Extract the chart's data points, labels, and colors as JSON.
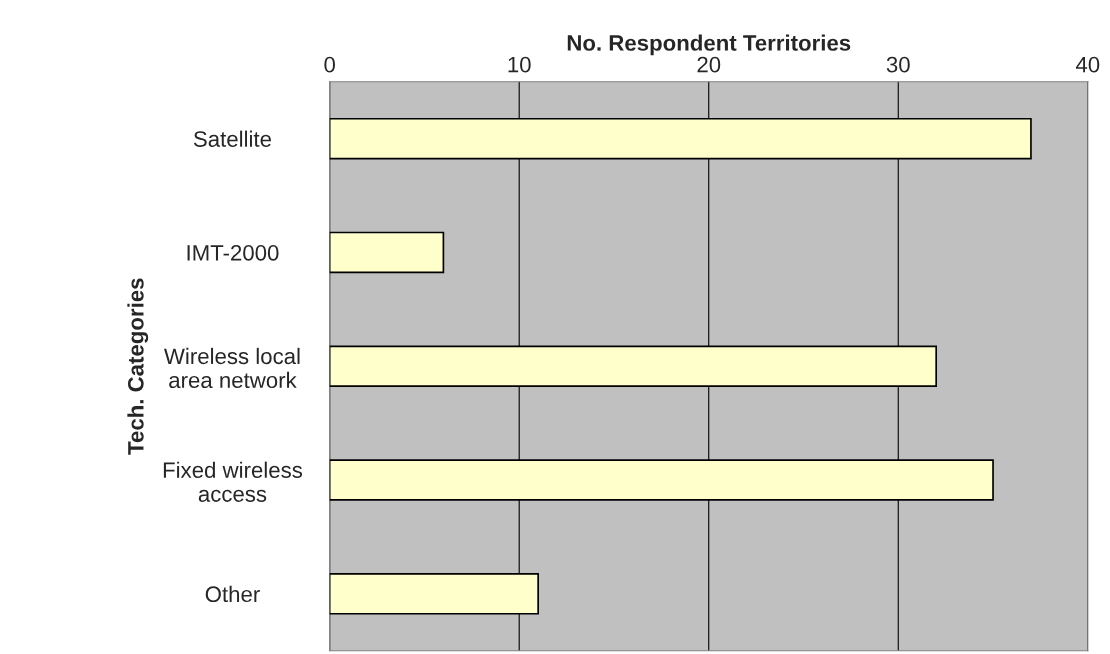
{
  "chart_data": {
    "type": "bar",
    "orientation": "horizontal",
    "xlabel": "No. Respondent Territories",
    "ylabel": "Tech. Categories",
    "categories": [
      "Satellite",
      "IMT-2000",
      "Wireless local\narea network",
      "Fixed wireless\naccess",
      "Other"
    ],
    "values": [
      37,
      6,
      32,
      35,
      11
    ],
    "color": "#ffffcc",
    "xlim": [
      0,
      40
    ],
    "xticks": [
      0,
      10,
      20,
      30,
      40
    ],
    "grid": "x"
  }
}
